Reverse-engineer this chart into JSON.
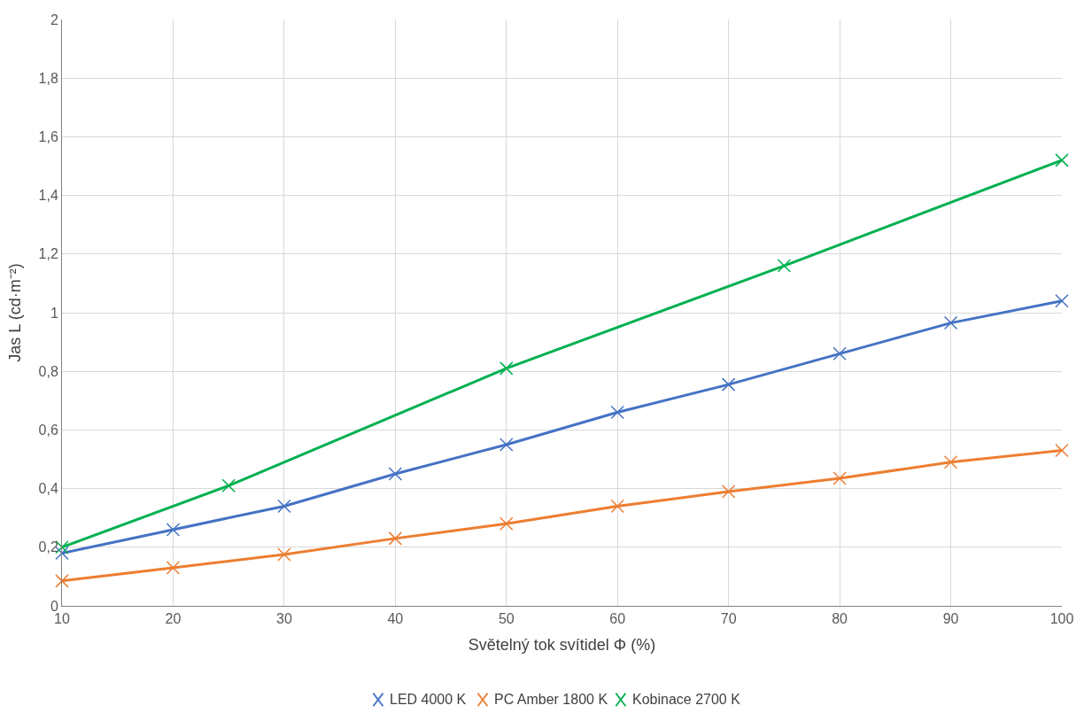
{
  "chart_data": {
    "type": "line",
    "xlabel": "Světelný tok svítidel Φ (%)",
    "ylabel": "Jas L (cd·m⁻²)",
    "x": [
      10,
      20,
      30,
      40,
      50,
      60,
      70,
      80,
      90,
      100
    ],
    "series": [
      {
        "name": "LED 4000 K",
        "color": "#4472c4",
        "values": [
          0.18,
          0.26,
          0.34,
          0.45,
          0.55,
          0.66,
          0.755,
          0.86,
          0.965,
          1.04
        ]
      },
      {
        "name": "PC Amber 1800 K",
        "color": "#ed7d31",
        "values": [
          0.085,
          0.13,
          0.175,
          0.23,
          0.28,
          0.34,
          0.39,
          0.435,
          0.49,
          0.53
        ]
      },
      {
        "name": "Kobinace 2700 K",
        "color": "#00b050",
        "x": [
          10,
          25,
          50,
          75,
          100
        ],
        "values": [
          0.2,
          0.41,
          0.81,
          1.16,
          1.52
        ]
      }
    ],
    "xlim": [
      10,
      100
    ],
    "xticks": [
      10,
      20,
      30,
      40,
      50,
      60,
      70,
      80,
      90,
      100
    ],
    "ylim": [
      0,
      2
    ],
    "yticks": [
      0,
      {
        "value": 0.2,
        "label": "0,2"
      },
      {
        "value": 0.4,
        "label": "0,4"
      },
      {
        "value": 0.6,
        "label": "0,6"
      },
      {
        "value": 0.8,
        "label": "0,8"
      },
      1,
      {
        "value": 1.2,
        "label": "1,2"
      },
      {
        "value": 1.4,
        "label": "1,4"
      },
      {
        "value": 1.6,
        "label": "1,6"
      },
      {
        "value": 1.8,
        "label": "1,8"
      },
      2
    ],
    "grid": true,
    "legend": "bottom",
    "marker": "cross",
    "line_style": "solid"
  }
}
